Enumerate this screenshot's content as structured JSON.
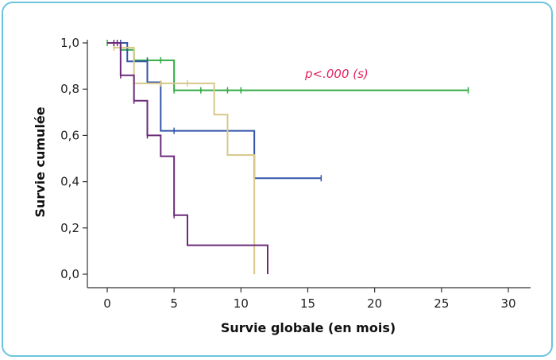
{
  "chart_data": {
    "type": "line",
    "subtype": "kaplan-meier",
    "xlabel": "Survie globale (en mois)",
    "ylabel": "Survie cumulée",
    "xlim": [
      0,
      30
    ],
    "ylim": [
      0,
      1.0
    ],
    "x_ticks": [
      0,
      5,
      10,
      15,
      20,
      25,
      30
    ],
    "y_ticks": [
      0,
      0.2,
      0.4,
      0.6,
      0.8,
      1.0
    ],
    "x_tick_labels": [
      "0",
      "5",
      "10",
      "15",
      "20",
      "25",
      "30"
    ],
    "y_tick_labels": [
      "0,0",
      "0,2",
      "0,4",
      "0,6",
      "0,8",
      "1,0"
    ],
    "annotation": "p<.000 (s)",
    "grid": false,
    "series": [
      {
        "color": "#33aa44",
        "steps": [
          [
            0,
            1.0
          ],
          [
            1,
            0.97
          ],
          [
            2,
            0.925
          ],
          [
            5,
            0.795
          ],
          [
            27,
            0.795
          ]
        ],
        "censored": [
          [
            0,
            1.0
          ],
          [
            3,
            0.925
          ],
          [
            4,
            0.925
          ],
          [
            5,
            0.795
          ],
          [
            7,
            0.795
          ],
          [
            9,
            0.795
          ],
          [
            10,
            0.795
          ],
          [
            27,
            0.795
          ]
        ]
      },
      {
        "color": "#3355aa",
        "steps": [
          [
            0,
            1.0
          ],
          [
            1.5,
            0.92
          ],
          [
            3,
            0.83
          ],
          [
            4,
            0.62
          ],
          [
            11,
            0.415
          ],
          [
            16,
            0.415
          ]
        ],
        "censored": [
          [
            1,
            1.0
          ],
          [
            3,
            0.92
          ],
          [
            5,
            0.62
          ],
          [
            16,
            0.415
          ]
        ]
      },
      {
        "color": "#d8c88a",
        "steps": [
          [
            0,
            1.0
          ],
          [
            0.5,
            0.98
          ],
          [
            2,
            0.825
          ],
          [
            8,
            0.69
          ],
          [
            9,
            0.515
          ],
          [
            11,
            0.0
          ]
        ],
        "censored": [
          [
            0.5,
            0.98
          ],
          [
            4,
            0.825
          ],
          [
            6,
            0.825
          ]
        ]
      },
      {
        "color": "#6b2a7a",
        "steps": [
          [
            0,
            1.0
          ],
          [
            1,
            0.86
          ],
          [
            2,
            0.75
          ],
          [
            3,
            0.6
          ],
          [
            4,
            0.51
          ],
          [
            5,
            0.255
          ],
          [
            6,
            0.125
          ],
          [
            12,
            0.0
          ]
        ],
        "censored": [
          [
            0.5,
            1.0
          ],
          [
            0.75,
            1.0
          ],
          [
            1,
            0.86
          ],
          [
            2,
            0.75
          ],
          [
            3,
            0.6
          ],
          [
            5,
            0.255
          ]
        ]
      }
    ]
  }
}
